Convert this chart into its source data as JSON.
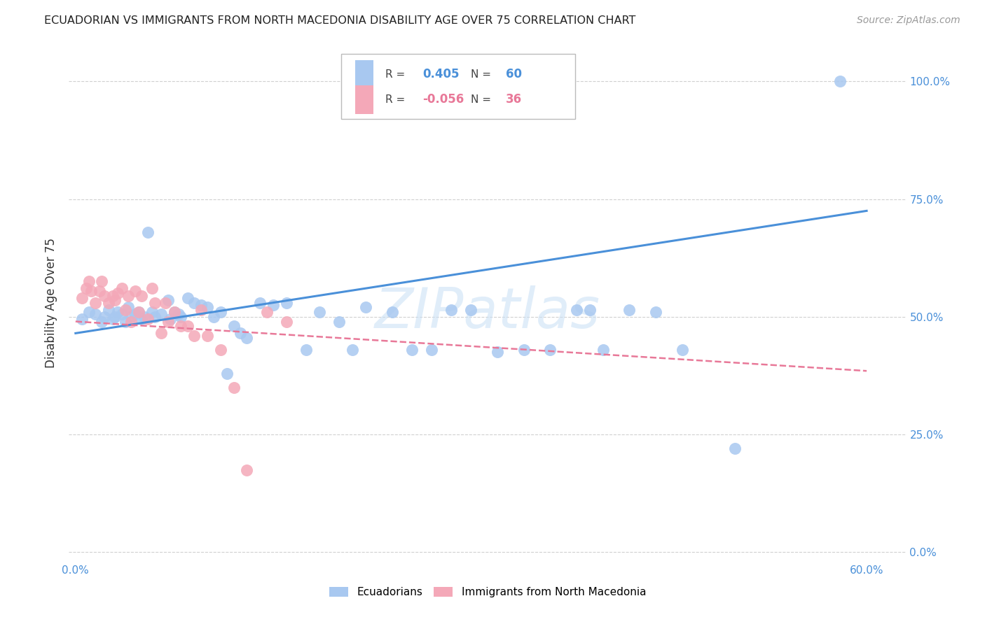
{
  "title": "ECUADORIAN VS IMMIGRANTS FROM NORTH MACEDONIA DISABILITY AGE OVER 75 CORRELATION CHART",
  "source": "Source: ZipAtlas.com",
  "ylabel": "Disability Age Over 75",
  "xlim": [
    -0.005,
    0.63
  ],
  "ylim": [
    -0.02,
    1.08
  ],
  "x_tick_positions": [
    0.0,
    0.6
  ],
  "x_tick_labels": [
    "0.0%",
    "60.0%"
  ],
  "y_tick_positions": [
    0.0,
    0.25,
    0.5,
    0.75,
    1.0
  ],
  "y_tick_labels": [
    "0.0%",
    "25.0%",
    "50.0%",
    "75.0%",
    "100.0%"
  ],
  "legend_blue_r": "0.405",
  "legend_blue_n": "60",
  "legend_pink_r": "-0.056",
  "legend_pink_n": "36",
  "blue_scatter_color": "#a8c8f0",
  "pink_scatter_color": "#f4a8b8",
  "blue_line_color": "#4a90d9",
  "pink_line_color": "#e87898",
  "blue_scatter_x": [
    0.005,
    0.01,
    0.015,
    0.02,
    0.022,
    0.025,
    0.028,
    0.03,
    0.032,
    0.035,
    0.038,
    0.04,
    0.042,
    0.045,
    0.048,
    0.05,
    0.052,
    0.055,
    0.058,
    0.06,
    0.065,
    0.07,
    0.072,
    0.075,
    0.078,
    0.08,
    0.085,
    0.09,
    0.095,
    0.1,
    0.105,
    0.11,
    0.115,
    0.12,
    0.125,
    0.13,
    0.14,
    0.15,
    0.16,
    0.175,
    0.185,
    0.2,
    0.21,
    0.22,
    0.24,
    0.255,
    0.27,
    0.285,
    0.3,
    0.32,
    0.34,
    0.36,
    0.38,
    0.39,
    0.4,
    0.42,
    0.44,
    0.46,
    0.5,
    0.58
  ],
  "blue_scatter_y": [
    0.495,
    0.51,
    0.505,
    0.49,
    0.5,
    0.515,
    0.495,
    0.5,
    0.51,
    0.505,
    0.49,
    0.52,
    0.5,
    0.505,
    0.51,
    0.495,
    0.5,
    0.68,
    0.51,
    0.5,
    0.505,
    0.535,
    0.495,
    0.51,
    0.505,
    0.5,
    0.54,
    0.53,
    0.525,
    0.52,
    0.5,
    0.51,
    0.38,
    0.48,
    0.465,
    0.455,
    0.53,
    0.525,
    0.53,
    0.43,
    0.51,
    0.49,
    0.43,
    0.52,
    0.51,
    0.43,
    0.43,
    0.515,
    0.515,
    0.425,
    0.43,
    0.43,
    0.515,
    0.515,
    0.43,
    0.515,
    0.51,
    0.43,
    0.22,
    1.0
  ],
  "pink_scatter_x": [
    0.005,
    0.008,
    0.01,
    0.012,
    0.015,
    0.018,
    0.02,
    0.022,
    0.025,
    0.028,
    0.03,
    0.032,
    0.035,
    0.038,
    0.04,
    0.042,
    0.045,
    0.048,
    0.05,
    0.055,
    0.058,
    0.06,
    0.065,
    0.068,
    0.07,
    0.075,
    0.08,
    0.085,
    0.09,
    0.095,
    0.1,
    0.11,
    0.12,
    0.13,
    0.145,
    0.16
  ],
  "pink_scatter_y": [
    0.54,
    0.56,
    0.575,
    0.555,
    0.53,
    0.555,
    0.575,
    0.545,
    0.53,
    0.545,
    0.535,
    0.55,
    0.56,
    0.515,
    0.545,
    0.49,
    0.555,
    0.51,
    0.545,
    0.495,
    0.56,
    0.53,
    0.465,
    0.53,
    0.49,
    0.51,
    0.48,
    0.48,
    0.46,
    0.515,
    0.46,
    0.43,
    0.35,
    0.175,
    0.51,
    0.49
  ],
  "blue_line_x": [
    0.0,
    0.6
  ],
  "blue_line_y": [
    0.465,
    0.725
  ],
  "pink_line_x": [
    0.0,
    0.6
  ],
  "pink_line_y": [
    0.49,
    0.385
  ],
  "watermark": "ZIPatlas",
  "background_color": "#ffffff",
  "grid_color": "#d0d0d0",
  "tick_label_color": "#4a90d9",
  "title_color": "#222222",
  "ylabel_color": "#333333"
}
